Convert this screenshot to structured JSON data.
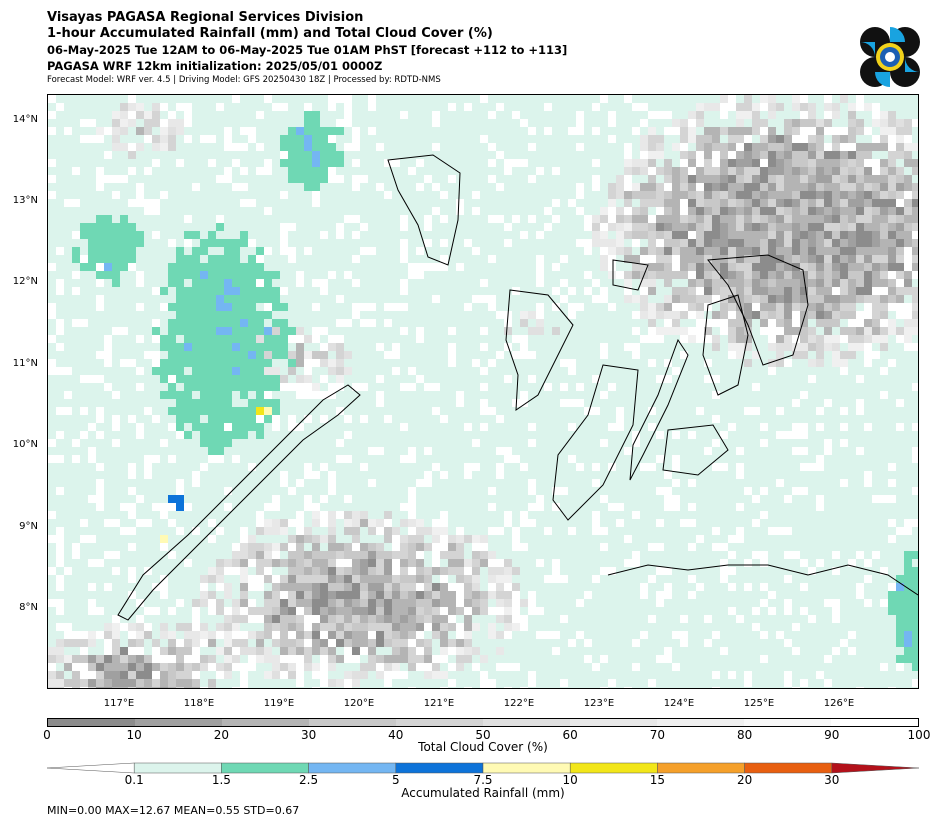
{
  "header": {
    "line1": "Visayas PAGASA Regional Services Division",
    "line2": "1-hour Accumulated Rainfall (mm) and Total Cloud Cover (%)",
    "line3": "06-May-2025 Tue 12AM to 06-May-2025 Tue 01AM PhST [forecast +112 to +113]",
    "line4": "PAGASA WRF 12km initialization: 2025/05/01 0000Z",
    "line5": "Forecast Model: WRF ver. 4.5 | Driving Model: GFS 20250430 18Z | Processed by: RDTD-NMS"
  },
  "map": {
    "lon_range": [
      116.0,
      126.9
    ],
    "lat_range": [
      7.0,
      14.3
    ],
    "lat_labels": [
      "14°N",
      "13°N",
      "12°N",
      "11°N",
      "10°N",
      "9°N",
      "8°N"
    ],
    "lon_labels": [
      "117°E",
      "118°E",
      "119°E",
      "120°E",
      "121°E",
      "122°E",
      "123°E",
      "124°E",
      "125°E",
      "126°E"
    ]
  },
  "cloud_legend": {
    "title": "Total Cloud Cover (%)",
    "ticks": [
      "0",
      "10",
      "20",
      "30",
      "40",
      "50",
      "60",
      "70",
      "80",
      "90",
      "100"
    ],
    "colors": [
      "#8c8c8c",
      "#a0a0a0",
      "#b4b4b4",
      "#c8c8c8",
      "#d4d4d4",
      "#e0e0e0",
      "#e8e8e8",
      "#f0f0f0",
      "#f8f8f8",
      "#ffffff"
    ]
  },
  "rain_legend": {
    "title": "Accumulated Rainfall (mm)",
    "ticks": [
      "0.1",
      "1.5",
      "2.5",
      "5",
      "7.5",
      "10",
      "15",
      "20",
      "30"
    ],
    "colors": [
      "#ffffff",
      "#dcf4ec",
      "#6fd8b4",
      "#74b6f2",
      "#0d73d9",
      "#fffab4",
      "#f2e619",
      "#f5a02a",
      "#e85f10",
      "#b3111a"
    ]
  },
  "stats": {
    "text": "MIN=0.00   MAX=12.67   MEAN=0.55   STD=0.67"
  }
}
